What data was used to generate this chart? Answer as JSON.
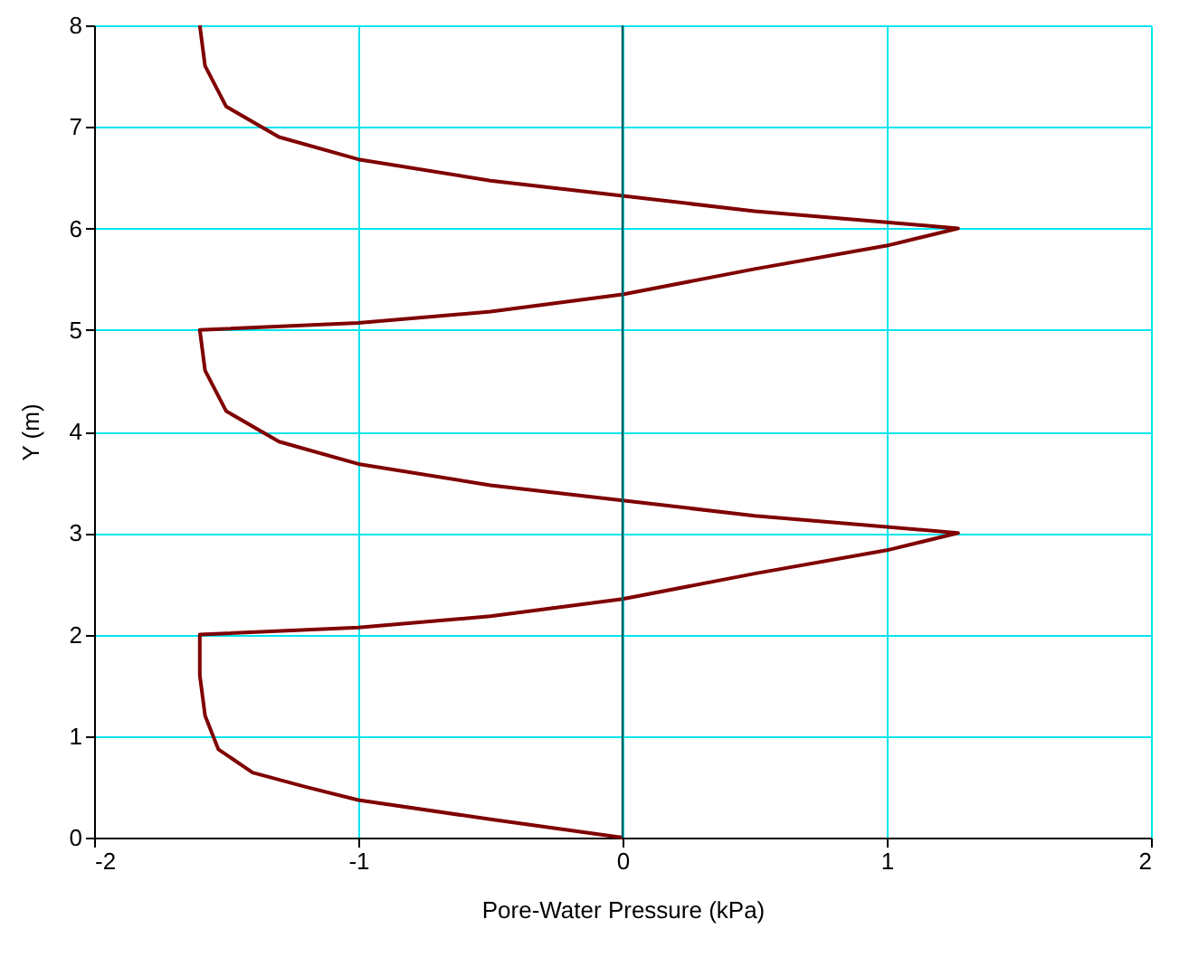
{
  "chart_data": {
    "type": "line",
    "xlabel": "Pore-Water Pressure (kPa)",
    "ylabel": "Y (m)",
    "series": [
      {
        "color": "#800000",
        "x": [
          0,
          -0.5,
          -1,
          -1.2,
          -1.4,
          -1.53,
          -1.58,
          -1.6,
          -1.6,
          -1,
          -0.5,
          0,
          0.5,
          1,
          1.27,
          1,
          0.5,
          0,
          -0.5,
          -1,
          -1.3,
          -1.5,
          -1.58,
          -1.6,
          -1.6,
          -1,
          -0.5,
          0,
          0.5,
          1,
          1.27,
          1,
          0.5,
          0,
          -0.5,
          -1,
          -1.3,
          -1.5,
          -1.58,
          -1.6
        ],
        "values": [
          0,
          0.18,
          0.37,
          0.5,
          0.64,
          0.87,
          1.2,
          1.6,
          2,
          2.07,
          2.18,
          2.35,
          2.6,
          2.83,
          3,
          3.06,
          3.17,
          3.32,
          3.47,
          3.68,
          3.9,
          4.2,
          4.6,
          5,
          5,
          5.07,
          5.18,
          5.35,
          5.6,
          5.83,
          6,
          6.06,
          6.17,
          6.32,
          6.47,
          6.68,
          6.9,
          7.2,
          7.6,
          8
        ]
      }
    ],
    "xlim": [
      -2,
      2
    ],
    "xticks": [
      -2,
      -1,
      0,
      1,
      2
    ],
    "ylim": [
      0,
      8
    ],
    "yticks": [
      0,
      1,
      2,
      3,
      4,
      5,
      6,
      7,
      8
    ],
    "grid": true,
    "ref_lines": [
      {
        "axis": "x",
        "value": 0,
        "color": "#006060"
      }
    ]
  }
}
